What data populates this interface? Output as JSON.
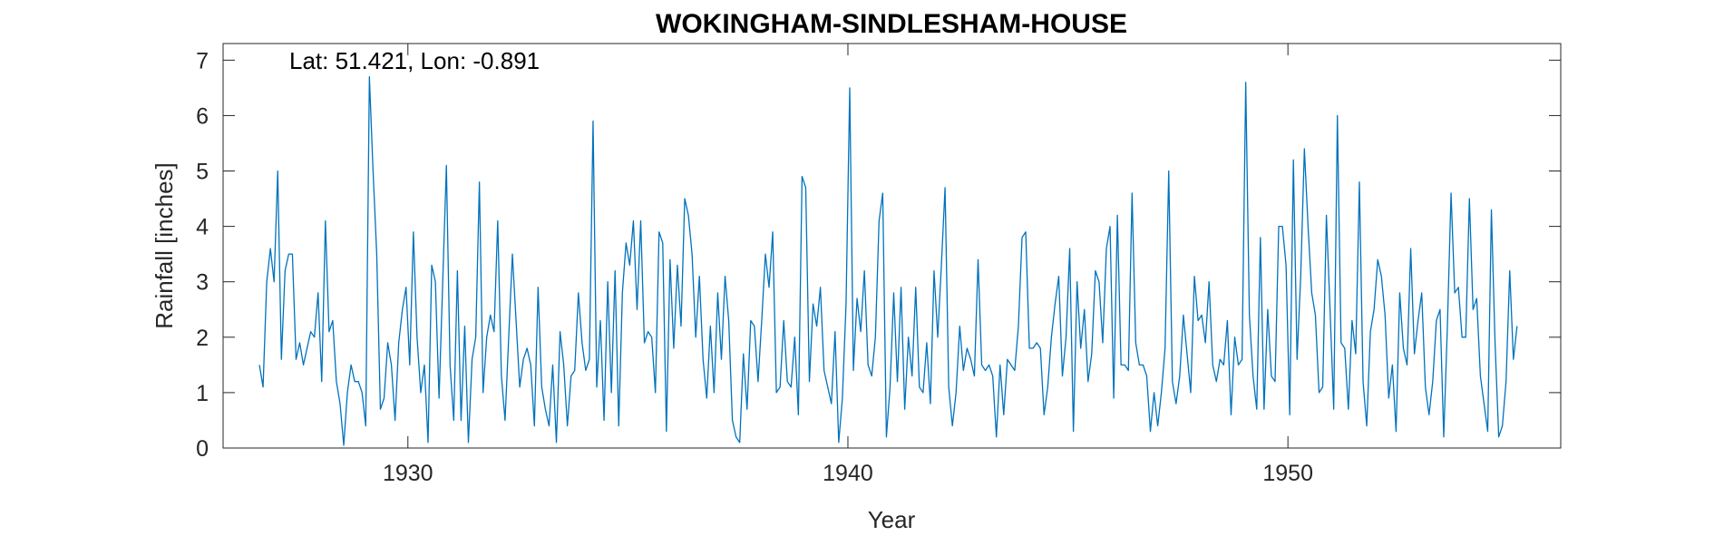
{
  "chart_data": {
    "type": "line",
    "title": "WOKINGHAM-SINDLESHAM-HOUSE",
    "xlabel": "Year",
    "ylabel": "Rainfall [inches]",
    "annotation": "Lat: 51.421, Lon: -0.891",
    "xlim": [
      1925.8,
      1956.2
    ],
    "ylim": [
      0,
      7.3
    ],
    "xticks": [
      1930,
      1940,
      1950
    ],
    "yticks": [
      0,
      1,
      2,
      3,
      4,
      5,
      6,
      7
    ],
    "grid": false,
    "line_color": "#0072BD",
    "series": [
      {
        "x_start": 1926.625,
        "x_step": 0.08333,
        "values": [
          1.5,
          1.1,
          3.0,
          3.6,
          3.0,
          5.0,
          1.6,
          3.2,
          3.5,
          3.5,
          1.6,
          1.9,
          1.5,
          1.8,
          2.1,
          2.0,
          2.8,
          1.2,
          4.1,
          2.1,
          2.3,
          1.2,
          0.8,
          0.05,
          1.0,
          1.5,
          1.2,
          1.2,
          1.0,
          0.4,
          6.7,
          5.0,
          3.5,
          0.7,
          0.9,
          1.9,
          1.5,
          0.5,
          1.9,
          2.5,
          2.9,
          1.5,
          3.9,
          2.0,
          1.0,
          1.5,
          0.1,
          3.3,
          3.0,
          0.9,
          3.0,
          5.1,
          1.5,
          0.5,
          3.2,
          0.5,
          2.2,
          0.1,
          1.6,
          2.0,
          4.8,
          1.0,
          2.0,
          2.4,
          2.1,
          4.1,
          1.3,
          0.5,
          2.0,
          3.5,
          2.3,
          1.1,
          1.6,
          1.8,
          1.5,
          0.4,
          2.9,
          1.1,
          0.7,
          0.4,
          1.5,
          0.1,
          2.1,
          1.5,
          0.4,
          1.3,
          1.4,
          2.8,
          1.9,
          1.4,
          1.6,
          5.9,
          1.1,
          2.3,
          0.5,
          3.0,
          1.0,
          3.2,
          0.4,
          2.8,
          3.7,
          3.3,
          4.1,
          2.5,
          4.1,
          1.9,
          2.1,
          2.0,
          1.0,
          3.9,
          3.7,
          0.3,
          3.4,
          1.8,
          3.3,
          2.2,
          4.5,
          4.2,
          3.5,
          2.0,
          3.1,
          1.6,
          0.9,
          2.2,
          1.0,
          2.8,
          1.6,
          3.1,
          2.3,
          0.5,
          0.2,
          0.1,
          1.7,
          0.7,
          2.3,
          2.2,
          1.2,
          2.3,
          3.5,
          2.9,
          3.9,
          1.0,
          1.1,
          2.3,
          1.2,
          1.1,
          2.0,
          0.6,
          4.9,
          4.7,
          1.2,
          2.6,
          2.2,
          2.9,
          1.4,
          1.1,
          0.8,
          2.1,
          0.1,
          0.9,
          2.6,
          6.5,
          1.4,
          2.7,
          2.1,
          3.2,
          1.5,
          1.3,
          2.0,
          4.1,
          4.6,
          0.2,
          1.1,
          2.8,
          1.2,
          2.9,
          0.7,
          2.0,
          1.3,
          2.9,
          1.1,
          1.0,
          1.9,
          0.8,
          3.2,
          2.0,
          3.3,
          4.7,
          1.1,
          0.4,
          1.0,
          2.2,
          1.4,
          1.8,
          1.6,
          1.3,
          3.4,
          1.5,
          1.4,
          1.5,
          1.3,
          0.2,
          1.5,
          0.6,
          1.6,
          1.5,
          1.4,
          2.2,
          3.8,
          3.9,
          1.8,
          1.8,
          1.9,
          1.8,
          0.6,
          1.1,
          2.0,
          2.6,
          3.1,
          1.3,
          2.0,
          3.6,
          0.3,
          3.0,
          1.8,
          2.5,
          1.2,
          1.7,
          3.2,
          3.0,
          1.9,
          3.6,
          4.0,
          0.9,
          4.2,
          1.5,
          1.5,
          1.4,
          4.6,
          1.9,
          1.5,
          1.5,
          1.3,
          0.3,
          1.0,
          0.4,
          1.0,
          1.8,
          5.0,
          1.2,
          0.8,
          1.3,
          2.4,
          1.7,
          1.0,
          3.1,
          2.3,
          2.4,
          1.9,
          3.0,
          1.5,
          1.2,
          1.6,
          1.5,
          2.3,
          0.6,
          2.0,
          1.5,
          1.6,
          6.6,
          2.4,
          1.3,
          0.7,
          3.8,
          0.7,
          2.5,
          1.3,
          1.2,
          4.0,
          4.0,
          3.3,
          0.6,
          5.2,
          1.6,
          3.1,
          5.4,
          4.0,
          2.8,
          2.4,
          1.0,
          1.1,
          4.2,
          2.5,
          0.7,
          6.0,
          1.9,
          1.8,
          0.7,
          2.3,
          1.7,
          4.8,
          1.2,
          0.4,
          2.1,
          2.5,
          3.4,
          3.1,
          2.4,
          0.9,
          1.5,
          0.3,
          2.8,
          1.8,
          1.5,
          3.6,
          1.7,
          2.3,
          2.8,
          1.1,
          0.6,
          1.2,
          2.3,
          2.5,
          0.2,
          2.2,
          4.6,
          2.8,
          2.9,
          2.0,
          2.0,
          4.5,
          2.5,
          2.7,
          1.3,
          0.8,
          0.3,
          4.3,
          1.9,
          0.2,
          0.4,
          1.2,
          3.2,
          1.6,
          2.2
        ]
      }
    ]
  }
}
